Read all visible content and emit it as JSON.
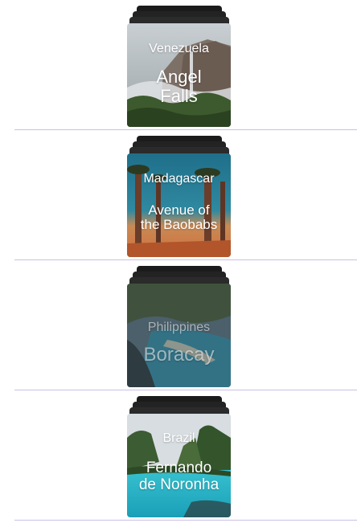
{
  "destinations": [
    {
      "country": "Venezuela",
      "place": "Angel Falls",
      "place_line1": "Angel",
      "place_line2": "Falls"
    },
    {
      "country": "Madagascar",
      "place": "Avenue of the Baobabs",
      "place_line1": "Avenue of",
      "place_line2": "the Baobabs"
    },
    {
      "country": "Philippines",
      "place": "Boracay",
      "place_line1": "Boracay",
      "place_line2": ""
    },
    {
      "country": "Brazil",
      "place": "Fernando de Noronha",
      "place_line1": "Fernando",
      "place_line2": "de Noronha"
    }
  ],
  "colors": {
    "divider": "#c9c0e6",
    "stack": "#232323",
    "text": "#ffffff"
  }
}
